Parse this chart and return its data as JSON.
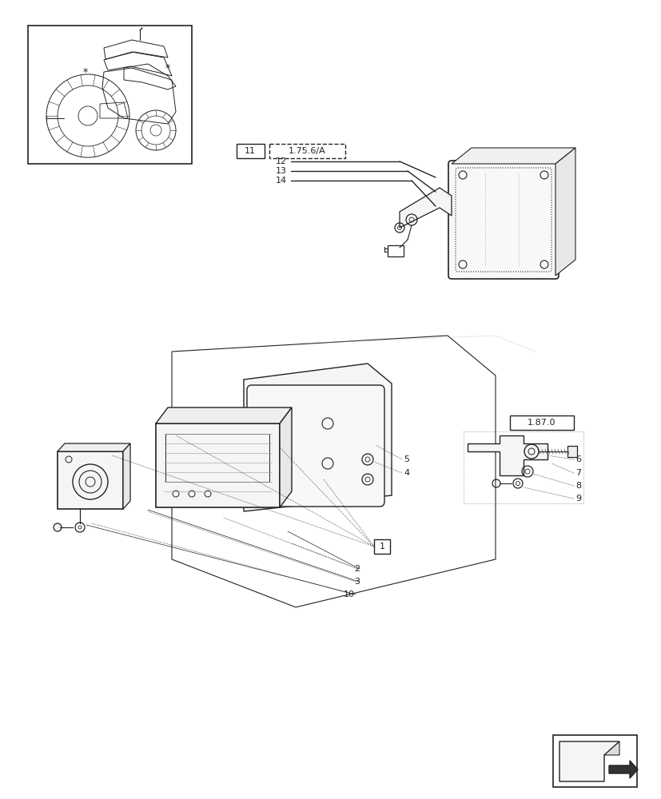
{
  "bg_color": "#ffffff",
  "line_color": "#222222",
  "lw_main": 1.0,
  "lw_thin": 0.6,
  "lw_dotted": 0.5,
  "figure_width": 8.28,
  "figure_height": 10.0,
  "dpi": 100
}
